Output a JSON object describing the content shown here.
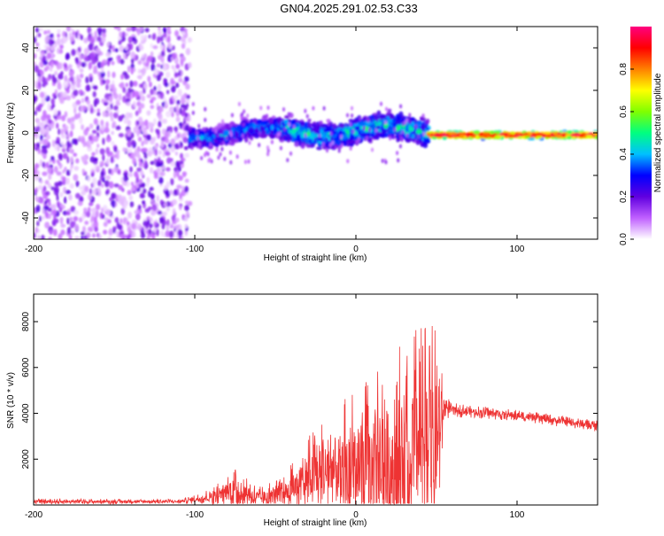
{
  "title": "GN04.2025.291.02.53.C33",
  "chart_data": [
    {
      "type": "heatmap",
      "name": "spectrogram",
      "xlabel": "Height of straight line (km)",
      "ylabel": "Frequency (Hz)",
      "xlim": [
        -200,
        150
      ],
      "ylim": [
        -50,
        50
      ],
      "xticks": [
        -200,
        -100,
        0,
        100
      ],
      "yticks": [
        -40,
        -20,
        0,
        20,
        40
      ],
      "xticklabels": [
        "-200",
        "-100",
        "0",
        "100"
      ],
      "yticklabels": [
        "-40",
        "-20",
        "0",
        "20",
        "40"
      ],
      "colorbar": {
        "label": "Normalized spectral amplitude",
        "range": [
          0,
          1
        ],
        "ticks": [
          0.0,
          0.2,
          0.4,
          0.6,
          0.8
        ],
        "ticklabels": [
          "0.0",
          "0.2",
          "0.4",
          "0.6",
          "0.8"
        ],
        "colors": [
          "#ffffff",
          "#c060ff",
          "#6000e0",
          "#0000ff",
          "#00c0ff",
          "#00ff80",
          "#80ff00",
          "#ffff00",
          "#ff8000",
          "#ff0000",
          "#ff0080"
        ]
      },
      "regions": [
        {
          "x": [
            -200,
            -103
          ],
          "freq_spread": 50,
          "amplitude": 0.1,
          "description_key": "broadband noise"
        },
        {
          "x": [
            -103,
            -45
          ],
          "center_hz": 0,
          "half_width_hz": 6,
          "amplitude": 0.3
        },
        {
          "x": [
            -45,
            45
          ],
          "center_hz": 1,
          "half_width_hz": 8,
          "amplitude": 0.35
        },
        {
          "x": [
            45,
            150
          ],
          "center_hz": -1,
          "half_width_hz": 2,
          "amplitude": 0.95
        }
      ]
    },
    {
      "type": "line",
      "name": "snr",
      "xlabel": "Height of straight line (km)",
      "ylabel": "SNR (10 * v/v)",
      "xlim": [
        -200,
        150
      ],
      "ylim": [
        0,
        9200
      ],
      "xticks": [
        -200,
        -100,
        0,
        100
      ],
      "yticks": [
        2000,
        4000,
        6000,
        8000
      ],
      "xticklabels": [
        "-200",
        "-100",
        "0",
        "100"
      ],
      "yticklabels": [
        "2000",
        "4000",
        "6000",
        "8000"
      ],
      "color": "#ee3333",
      "envelope": [
        {
          "x": -200,
          "base": 150,
          "amp": 120
        },
        {
          "x": -110,
          "base": 150,
          "amp": 100
        },
        {
          "x": -95,
          "base": 300,
          "amp": 250
        },
        {
          "x": -75,
          "base": 700,
          "amp": 900
        },
        {
          "x": -60,
          "base": 300,
          "amp": 500
        },
        {
          "x": -45,
          "base": 500,
          "amp": 700
        },
        {
          "x": -30,
          "base": 1200,
          "amp": 1800
        },
        {
          "x": -15,
          "base": 1500,
          "amp": 2800
        },
        {
          "x": 0,
          "base": 1500,
          "amp": 3500
        },
        {
          "x": 20,
          "base": 2000,
          "amp": 4500
        },
        {
          "x": 35,
          "base": 2500,
          "amp": 5500
        },
        {
          "x": 50,
          "base": 2800,
          "amp": 5000
        },
        {
          "x": 55,
          "base": 4300,
          "amp": 600
        },
        {
          "x": 60,
          "base": 4150,
          "amp": 300
        },
        {
          "x": 100,
          "base": 3900,
          "amp": 250
        },
        {
          "x": 150,
          "base": 3450,
          "amp": 250
        }
      ]
    }
  ]
}
